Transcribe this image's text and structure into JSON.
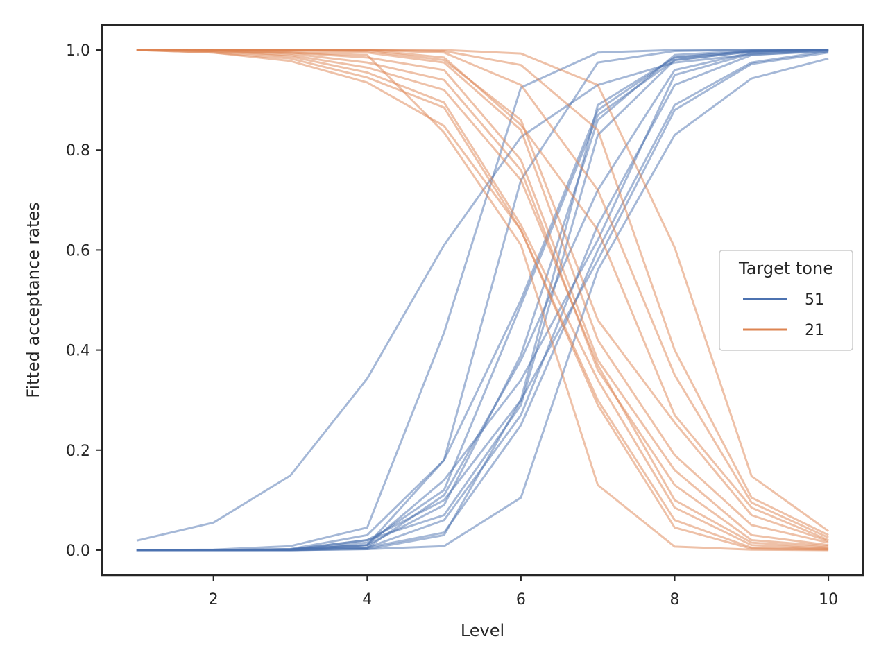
{
  "chart_data": {
    "type": "line",
    "title": "",
    "xlabel": "Level",
    "ylabel": "Fitted acceptance rates",
    "xlim": [
      0.55,
      10.45
    ],
    "ylim": [
      -0.05,
      1.05
    ],
    "xticks": [
      2,
      4,
      6,
      8,
      10
    ],
    "yticks": [
      0.0,
      0.2,
      0.4,
      0.6,
      0.8,
      1.0
    ],
    "grid": false,
    "line_alpha": 0.5,
    "legend": {
      "title": "Target tone",
      "placement": "center-right",
      "entries": [
        {
          "label": "51",
          "color": "#4c72b0"
        },
        {
          "label": "21",
          "color": "#dd8452"
        }
      ]
    },
    "x": [
      1,
      2,
      3,
      4,
      5,
      6,
      7,
      8,
      9,
      10
    ],
    "groups": [
      {
        "tone": "51",
        "color": "#4c72b0",
        "series": [
          {
            "values": [
              0.019,
              0.055,
              0.149,
              0.343,
              0.61,
              0.826,
              0.93,
              0.975,
              0.991,
              0.997
            ]
          },
          {
            "values": [
              0.0,
              0.001,
              0.008,
              0.045,
              0.435,
              0.925,
              0.995,
              1.0,
              1.0,
              1.0
            ]
          },
          {
            "values": [
              0.0,
              0.0,
              0.002,
              0.03,
              0.18,
              0.74,
              0.975,
              0.998,
              1.0,
              1.0
            ]
          },
          {
            "values": [
              0.0,
              0.0,
              0.002,
              0.01,
              0.18,
              0.5,
              0.88,
              0.985,
              0.998,
              1.0
            ]
          },
          {
            "values": [
              0.0,
              0.0,
              0.001,
              0.015,
              0.12,
              0.49,
              0.87,
              0.98,
              0.997,
              1.0
            ]
          },
          {
            "values": [
              0.0,
              0.0,
              0.001,
              0.01,
              0.09,
              0.39,
              0.86,
              0.99,
              0.999,
              1.0
            ]
          },
          {
            "values": [
              0.0,
              0.0,
              0.001,
              0.02,
              0.1,
              0.3,
              0.89,
              0.985,
              0.998,
              1.0
            ]
          },
          {
            "values": [
              0.0,
              0.0,
              0.001,
              0.02,
              0.07,
              0.29,
              0.83,
              0.98,
              0.997,
              1.0
            ]
          },
          {
            "values": [
              0.0,
              0.0,
              0.001,
              0.005,
              0.11,
              0.38,
              0.72,
              0.96,
              0.995,
              1.0
            ]
          },
          {
            "values": [
              0.0,
              0.0,
              0.001,
              0.01,
              0.14,
              0.34,
              0.62,
              0.95,
              0.993,
              1.0
            ]
          },
          {
            "values": [
              0.0,
              0.0,
              0.0,
              0.005,
              0.06,
              0.27,
              0.65,
              0.93,
              0.99,
              0.999
            ]
          },
          {
            "values": [
              0.0,
              0.0,
              0.0,
              0.005,
              0.035,
              0.25,
              0.6,
              0.89,
              0.975,
              0.998
            ]
          },
          {
            "values": [
              0.0,
              0.0,
              0.0,
              0.002,
              0.03,
              0.3,
              0.58,
              0.88,
              0.972,
              0.995
            ]
          },
          {
            "values": [
              0.0,
              0.0,
              0.0,
              0.002,
              0.008,
              0.105,
              0.56,
              0.83,
              0.943,
              0.983
            ]
          }
        ]
      },
      {
        "tone": "21",
        "color": "#dd8452",
        "series": [
          {
            "values": [
              1.0,
              1.0,
              1.0,
              1.0,
              1.0,
              0.993,
              0.93,
              0.605,
              0.148,
              0.038
            ]
          },
          {
            "values": [
              1.0,
              1.0,
              1.0,
              1.0,
              0.998,
              0.97,
              0.84,
              0.4,
              0.105,
              0.03
            ]
          },
          {
            "values": [
              1.0,
              1.0,
              1.0,
              1.0,
              0.995,
              0.93,
              0.72,
              0.35,
              0.095,
              0.025
            ]
          },
          {
            "values": [
              1.0,
              1.0,
              1.0,
              1.0,
              0.985,
              0.85,
              0.64,
              0.27,
              0.085,
              0.02
            ]
          },
          {
            "values": [
              1.0,
              1.0,
              1.0,
              0.998,
              0.98,
              0.86,
              0.46,
              0.255,
              0.07,
              0.018
            ]
          },
          {
            "values": [
              1.0,
              1.0,
              0.998,
              0.995,
              0.975,
              0.84,
              0.42,
              0.19,
              0.05,
              0.015
            ]
          },
          {
            "values": [
              1.0,
              1.0,
              0.995,
              0.985,
              0.96,
              0.78,
              0.38,
              0.16,
              0.03,
              0.01
            ]
          },
          {
            "values": [
              1.0,
              1.0,
              0.993,
              0.975,
              0.94,
              0.76,
              0.36,
              0.13,
              0.02,
              0.008
            ]
          },
          {
            "values": [
              1.0,
              0.998,
              0.99,
              0.965,
              0.92,
              0.74,
              0.37,
              0.1,
              0.015,
              0.005
            ]
          },
          {
            "values": [
              1.0,
              0.998,
              0.987,
              0.955,
              0.895,
              0.65,
              0.34,
              0.085,
              0.01,
              0.003
            ]
          },
          {
            "values": [
              1.0,
              0.995,
              0.983,
              0.945,
              0.885,
              0.64,
              0.3,
              0.06,
              0.005,
              0.002
            ]
          },
          {
            "values": [
              1.0,
              0.995,
              0.978,
              0.935,
              0.848,
              0.64,
              0.29,
              0.045,
              0.003,
              0.001
            ]
          },
          {
            "values": [
              1.0,
              0.998,
              0.995,
              0.99,
              0.835,
              0.61,
              0.13,
              0.007,
              0.001,
              0.0
            ]
          }
        ]
      }
    ]
  }
}
